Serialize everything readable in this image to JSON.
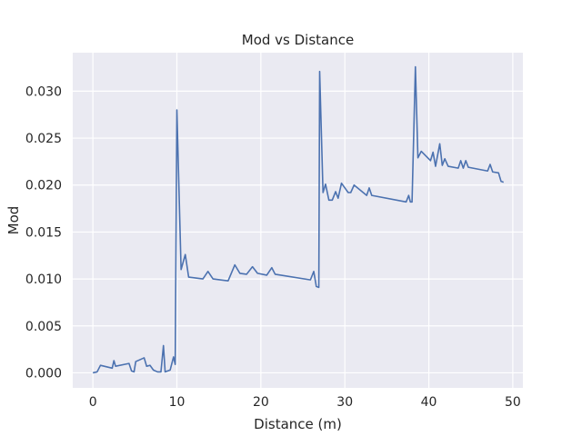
{
  "chart_data": {
    "type": "line",
    "title": "Mod vs Distance",
    "xlabel": "Distance (m)",
    "ylabel": "Mod",
    "xlim": [
      -2.4,
      51.2
    ],
    "ylim": [
      -0.0016,
      0.0341
    ],
    "xticks": [
      0,
      10,
      20,
      30,
      40,
      50
    ],
    "xtick_labels": [
      "0",
      "10",
      "20",
      "30",
      "40",
      "50"
    ],
    "yticks": [
      0.0,
      0.005,
      0.01,
      0.015,
      0.02,
      0.025,
      0.03
    ],
    "ytick_labels": [
      "0.000",
      "0.005",
      "0.010",
      "0.015",
      "0.020",
      "0.025",
      "0.030"
    ],
    "grid": true,
    "colors": {
      "background": "#eaeaf2",
      "grid": "#ffffff",
      "line": "#4c72b0"
    },
    "series": [
      {
        "x": [
          0.0,
          0.5,
          0.9,
          2.3,
          2.5,
          2.7,
          4.3,
          4.6,
          4.9,
          5.1,
          6.1,
          6.4,
          6.8,
          7.2,
          7.7,
          8.1,
          8.4,
          8.6,
          9.2,
          9.6,
          9.8,
          10.0,
          10.5,
          11.0,
          11.4,
          13.1,
          13.7,
          14.3,
          16.1,
          16.9,
          17.5,
          18.3,
          19.0,
          19.6,
          20.7,
          21.3,
          21.7,
          25.9,
          26.3,
          26.6,
          26.9,
          27.0,
          27.4,
          27.7,
          28.1,
          28.5,
          28.9,
          29.2,
          29.6,
          30.4,
          30.7,
          31.1,
          32.6,
          32.9,
          33.2,
          37.3,
          37.6,
          37.8,
          38.0,
          38.4,
          38.7,
          39.1,
          40.2,
          40.5,
          40.8,
          41.3,
          41.6,
          41.9,
          42.3,
          43.5,
          43.8,
          44.1,
          44.4,
          44.7,
          47.0,
          47.3,
          47.6,
          48.3,
          48.6,
          48.9
        ],
        "y": [
          0.0,
          0.0001,
          0.0008,
          0.0005,
          0.0013,
          0.0007,
          0.001,
          0.0002,
          0.0001,
          0.0012,
          0.0016,
          0.0007,
          0.0008,
          0.0003,
          0.0001,
          0.0001,
          0.0029,
          0.0001,
          0.0003,
          0.0017,
          0.0009,
          0.028,
          0.011,
          0.0126,
          0.0102,
          0.01,
          0.0108,
          0.01,
          0.0098,
          0.0115,
          0.0106,
          0.0105,
          0.0113,
          0.0106,
          0.0104,
          0.0112,
          0.0105,
          0.0099,
          0.0108,
          0.0092,
          0.0091,
          0.0321,
          0.0192,
          0.0201,
          0.0184,
          0.0184,
          0.0193,
          0.0186,
          0.0202,
          0.0192,
          0.0192,
          0.02,
          0.0189,
          0.0197,
          0.0189,
          0.0182,
          0.0189,
          0.0182,
          0.0182,
          0.0326,
          0.0229,
          0.0236,
          0.0226,
          0.0235,
          0.022,
          0.0244,
          0.0221,
          0.0228,
          0.022,
          0.0218,
          0.0226,
          0.0218,
          0.0226,
          0.0219,
          0.0215,
          0.0222,
          0.0214,
          0.0213,
          0.0204,
          0.0203
        ]
      }
    ]
  }
}
